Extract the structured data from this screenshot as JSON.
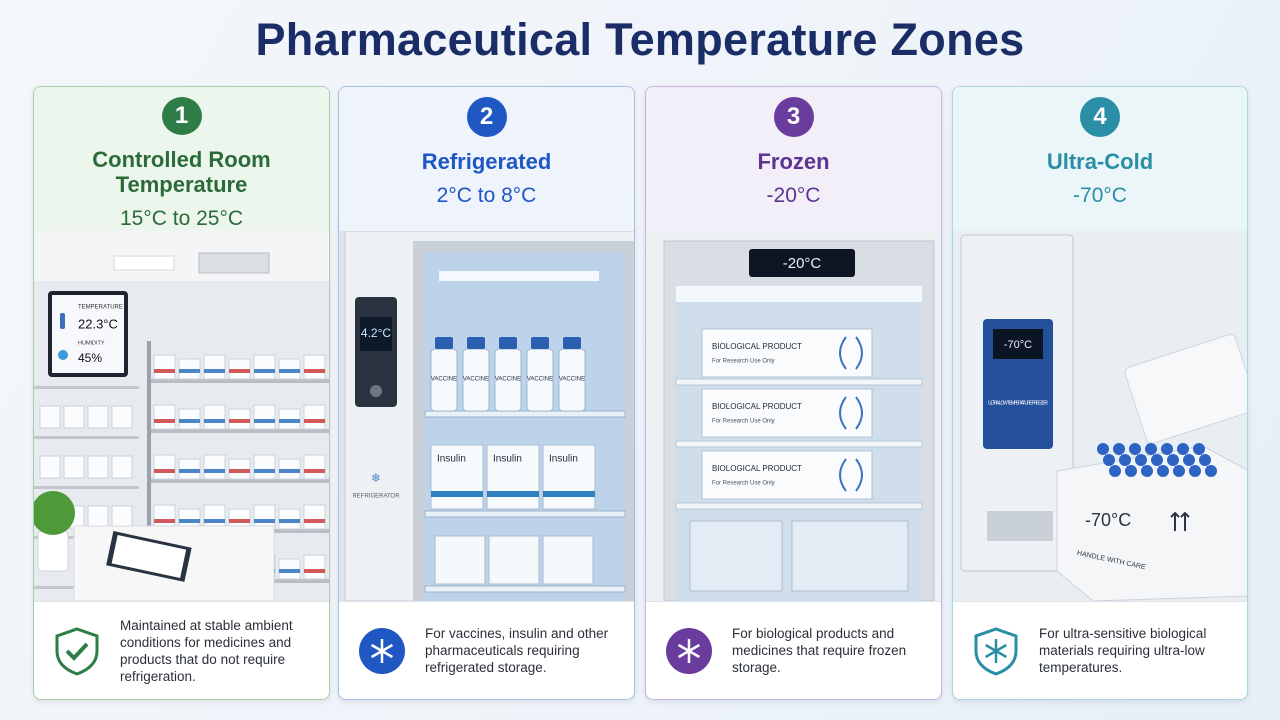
{
  "title": "Pharmaceutical Temperature Zones",
  "zones": [
    {
      "number": 1,
      "name": "Controlled Room Temperature",
      "range": "15°C to 25°C",
      "description": "Maintained at stable ambient conditions for medicines and products that do not require refrigeration.",
      "scene": [
        "TEMPERATURE",
        "22.3°C",
        "HUMIDITY",
        "45%"
      ]
    },
    {
      "number": 2,
      "name": "Refrigerated",
      "range": "2°C to 8°C",
      "description": "For vaccines, insulin and other pharmaceuticals requiring refrigerated storage.",
      "scene": [
        "4.2°C",
        "VACCINE",
        "Insulin",
        "REFRIGERATOR"
      ]
    },
    {
      "number": 3,
      "name": "Frozen",
      "range": "-20°C",
      "description": "For biological products and medicines that require frozen storage.",
      "scene": [
        "-20°C",
        "BIOLOGICAL PRODUCT",
        "For Research Use Only"
      ]
    },
    {
      "number": 4,
      "name": "Ultra-Cold",
      "range": "-70°C",
      "description": "For ultra-sensitive biological materials requiring ultra-low temperatures.",
      "scene": [
        "-70°C",
        "ULTRA-LOW TEMPERATURE FREEZER",
        "-70°C",
        "HANDLE WITH CARE"
      ]
    }
  ]
}
